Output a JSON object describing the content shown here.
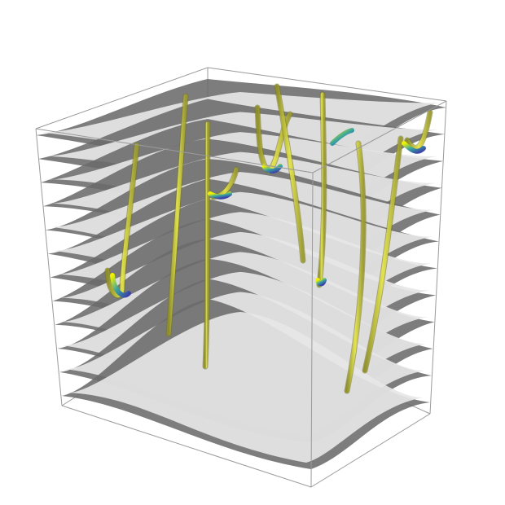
{
  "scene": {
    "background": "#ffffff",
    "box_edge_color": "#9a9a9a",
    "layer_dark_color": "#6b6b6b",
    "layer_light_color": "#e6e6e6",
    "tube_color": "#e8e84a",
    "tube_highlight_color": "#f6f600",
    "tube_accent_colors": [
      "#2b7bb9",
      "#3a9a78",
      "#5a3fa0"
    ],
    "layer_count": 12,
    "tube_count": 10
  }
}
